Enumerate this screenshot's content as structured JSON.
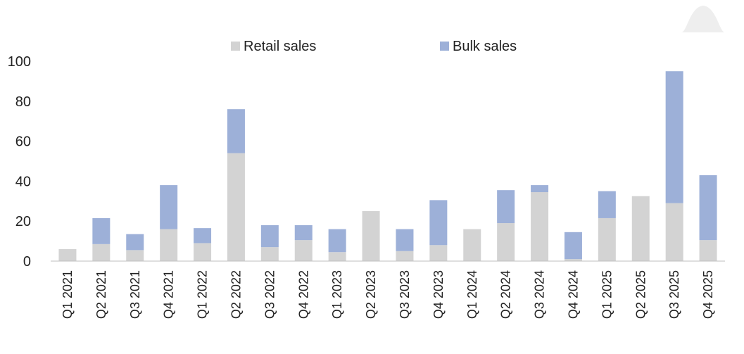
{
  "chart_data": {
    "type": "bar",
    "stacked": true,
    "title": "",
    "xlabel": "",
    "ylabel": "",
    "ylim": [
      0,
      100
    ],
    "yticks": [
      0,
      20,
      40,
      60,
      80,
      100
    ],
    "grid": false,
    "legend_position": "top",
    "categories": [
      "Q1 2021",
      "Q2 2021",
      "Q3 2021",
      "Q4 2021",
      "Q1 2022",
      "Q2 2022",
      "Q3 2022",
      "Q4 2022",
      "Q1 2023",
      "Q2 2023",
      "Q3 2023",
      "Q4 2023",
      "Q1 2024",
      "Q2 2024",
      "Q3 2024",
      "Q4 2024",
      "Q1 2025",
      "Q2 2025",
      "Q3 2025",
      "Q4 2025"
    ],
    "series": [
      {
        "name": "Retail sales",
        "color": "#d3d3d3",
        "values": [
          6,
          8.5,
          5.5,
          16,
          9,
          54,
          7,
          10.5,
          4.5,
          25,
          5,
          8,
          16,
          19,
          34.5,
          1,
          21.5,
          32.5,
          29,
          10.5
        ]
      },
      {
        "name": "Bulk sales",
        "color": "#9db0d8",
        "values": [
          0,
          13,
          8,
          22,
          7.5,
          22,
          11,
          7.5,
          11.5,
          0,
          11,
          22.5,
          0,
          16.5,
          3.5,
          13.5,
          13.5,
          0,
          66,
          32.5
        ]
      }
    ]
  },
  "decor_icon": "bell-shape-icon"
}
